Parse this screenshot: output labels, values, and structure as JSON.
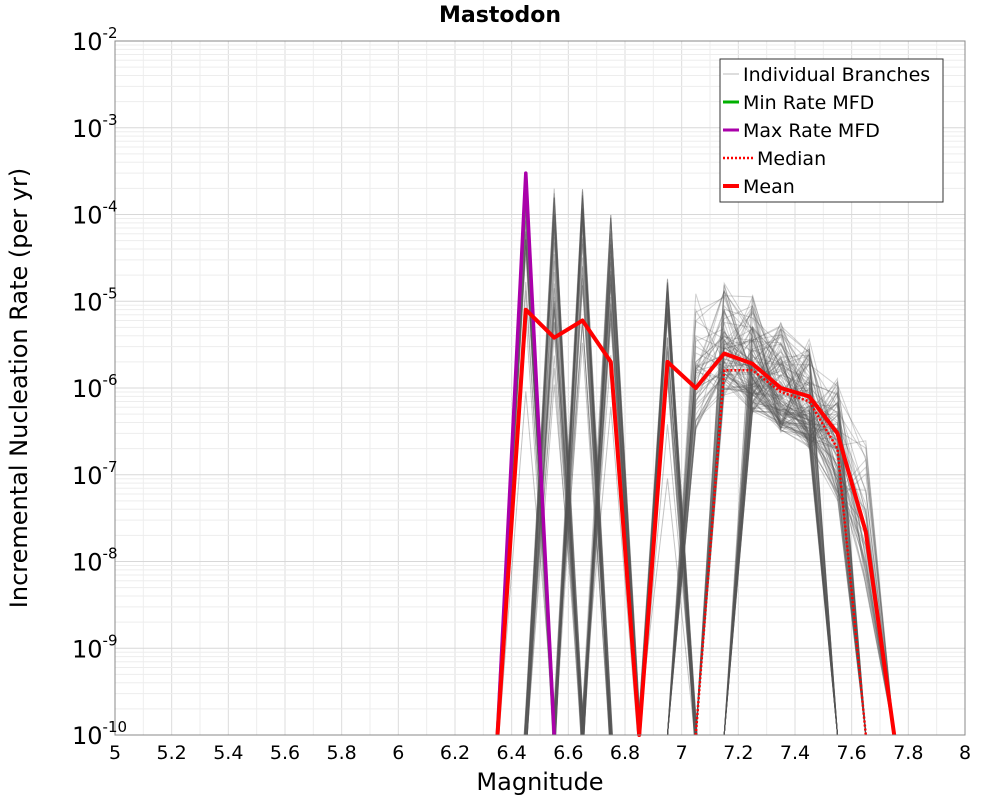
{
  "chart_data": {
    "type": "line",
    "title": "Mastodon",
    "xlabel": "Magnitude",
    "ylabel": "Incremental Nucleation Rate (per yr)",
    "xlim": [
      5,
      8
    ],
    "ylim": [
      1e-10,
      0.01
    ],
    "yscale": "log",
    "grid": true,
    "legend_position": "top-right",
    "x_ticks": [
      "5",
      "5.2",
      "5.4",
      "5.6",
      "5.8",
      "6",
      "6.2",
      "6.4",
      "6.6",
      "6.8",
      "7",
      "7.2",
      "7.4",
      "7.6",
      "7.8",
      "8"
    ],
    "y_ticks": [
      {
        "base": "10",
        "exp": "-2"
      },
      {
        "base": "10",
        "exp": "-3"
      },
      {
        "base": "10",
        "exp": "-4"
      },
      {
        "base": "10",
        "exp": "-5"
      },
      {
        "base": "10",
        "exp": "-6"
      },
      {
        "base": "10",
        "exp": "-7"
      },
      {
        "base": "10",
        "exp": "-8"
      },
      {
        "base": "10",
        "exp": "-9"
      },
      {
        "base": "10",
        "exp": "-10"
      }
    ],
    "legend": [
      {
        "label": "Individual Branches",
        "color": "#bbbbbb",
        "style": "solid-thin"
      },
      {
        "label": "Min Rate MFD",
        "color": "#00b000",
        "style": "solid"
      },
      {
        "label": "Max Rate MFD",
        "color": "#aa00aa",
        "style": "solid"
      },
      {
        "label": "Median",
        "color": "#ff0000",
        "style": "dotted"
      },
      {
        "label": "Mean",
        "color": "#ff0000",
        "style": "solid-thick"
      }
    ],
    "series": [
      {
        "name": "Max Rate MFD",
        "color": "#aa00aa",
        "points": [
          [
            6.35,
            1e-10
          ],
          [
            6.45,
            0.0003
          ],
          [
            6.55,
            1e-10
          ]
        ]
      },
      {
        "name": "Median",
        "color": "#ff0000",
        "points": [
          [
            7.05,
            1e-10
          ],
          [
            7.15,
            1.6e-06
          ],
          [
            7.25,
            1.6e-06
          ],
          [
            7.35,
            9e-07
          ],
          [
            7.45,
            7e-07
          ],
          [
            7.55,
            2e-07
          ],
          [
            7.65,
            1e-10
          ]
        ]
      },
      {
        "name": "Mean",
        "color": "#ff0000",
        "points": [
          [
            6.35,
            1e-10
          ],
          [
            6.45,
            8e-06
          ],
          [
            6.55,
            3.8e-06
          ],
          [
            6.65,
            6e-06
          ],
          [
            6.75,
            2e-06
          ],
          [
            6.85,
            1e-10
          ],
          [
            6.85,
            1e-10
          ],
          [
            6.95,
            2e-06
          ],
          [
            7.05,
            1e-06
          ],
          [
            7.15,
            2.5e-06
          ],
          [
            7.25,
            1.9e-06
          ],
          [
            7.35,
            1e-06
          ],
          [
            7.45,
            8e-07
          ],
          [
            7.55,
            3e-07
          ],
          [
            7.65,
            2.2e-08
          ],
          [
            7.75,
            1e-10
          ]
        ]
      }
    ],
    "branch_envelope": {
      "name": "Individual Branches",
      "color": "#555555",
      "peaks": [
        {
          "x": 6.45,
          "y": 0.0003
        },
        {
          "x": 6.55,
          "y": 0.0002
        },
        {
          "x": 6.65,
          "y": 0.0002
        },
        {
          "x": 6.75,
          "y": 0.0001
        },
        {
          "x": 6.95,
          "y": 2e-05
        }
      ],
      "band_x": [
        7.05,
        7.15,
        7.25,
        7.35,
        7.45,
        7.55,
        7.65
      ],
      "band_high": [
        2e-05,
        2e-05,
        1.2e-05,
        6e-06,
        4e-06,
        1.5e-06,
        6e-07
      ],
      "band_low": [
        3e-07,
        8e-07,
        5e-07,
        3e-07,
        2e-07,
        5e-08,
        5e-09
      ]
    }
  }
}
